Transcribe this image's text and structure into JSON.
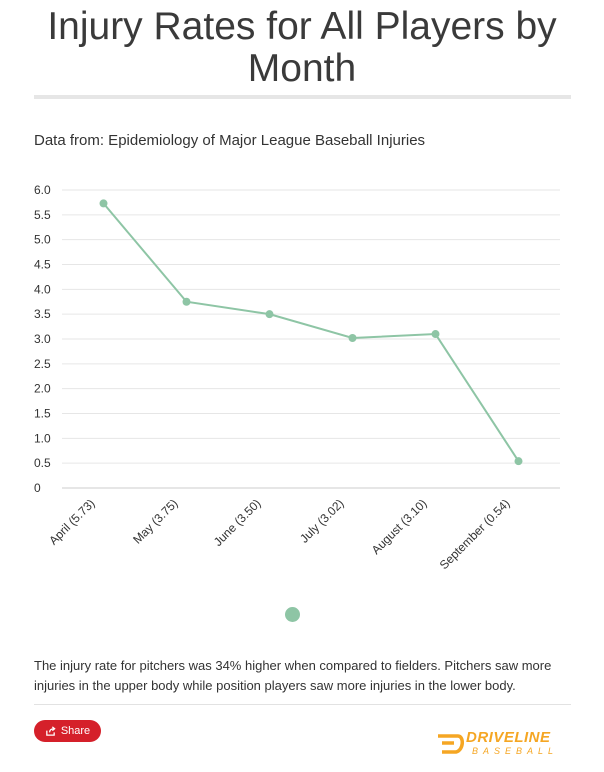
{
  "header": {
    "title": "Injury Rates for All Players by Month",
    "subtitle": "Data from: Epidemiology of Major League Baseball Injuries"
  },
  "chart_data": {
    "type": "line",
    "categories": [
      "April (5.73)",
      "May (3.75)",
      "June (3.50)",
      "July (3.02)",
      "August (3.10)",
      "September (0.54)"
    ],
    "series": [
      {
        "values": [
          5.73,
          3.75,
          3.5,
          3.02,
          3.1,
          0.54
        ]
      }
    ],
    "yticks": [
      "0",
      "0.5",
      "1.0",
      "1.5",
      "2.0",
      "2.5",
      "3.0",
      "3.5",
      "4.0",
      "4.5",
      "5.0",
      "5.5",
      "6.0"
    ],
    "ylim": [
      0,
      6
    ],
    "grid": true,
    "legend": "bottom-center",
    "line_color": "#8ec5a5"
  },
  "description": "The injury rate for pitchers was 34% higher when compared to fielders. Pitchers saw more injuries in the upper body while position players saw more injuries in the lower body.",
  "footer": {
    "share_label": "Share",
    "share_icon": "share-icon",
    "share_color": "#d5202a",
    "brand_name": "DRIVELINE",
    "brand_sub": "BASEBALL",
    "brand_color": "#f5a623",
    "brand_logo": "driveline-logo-icon"
  }
}
